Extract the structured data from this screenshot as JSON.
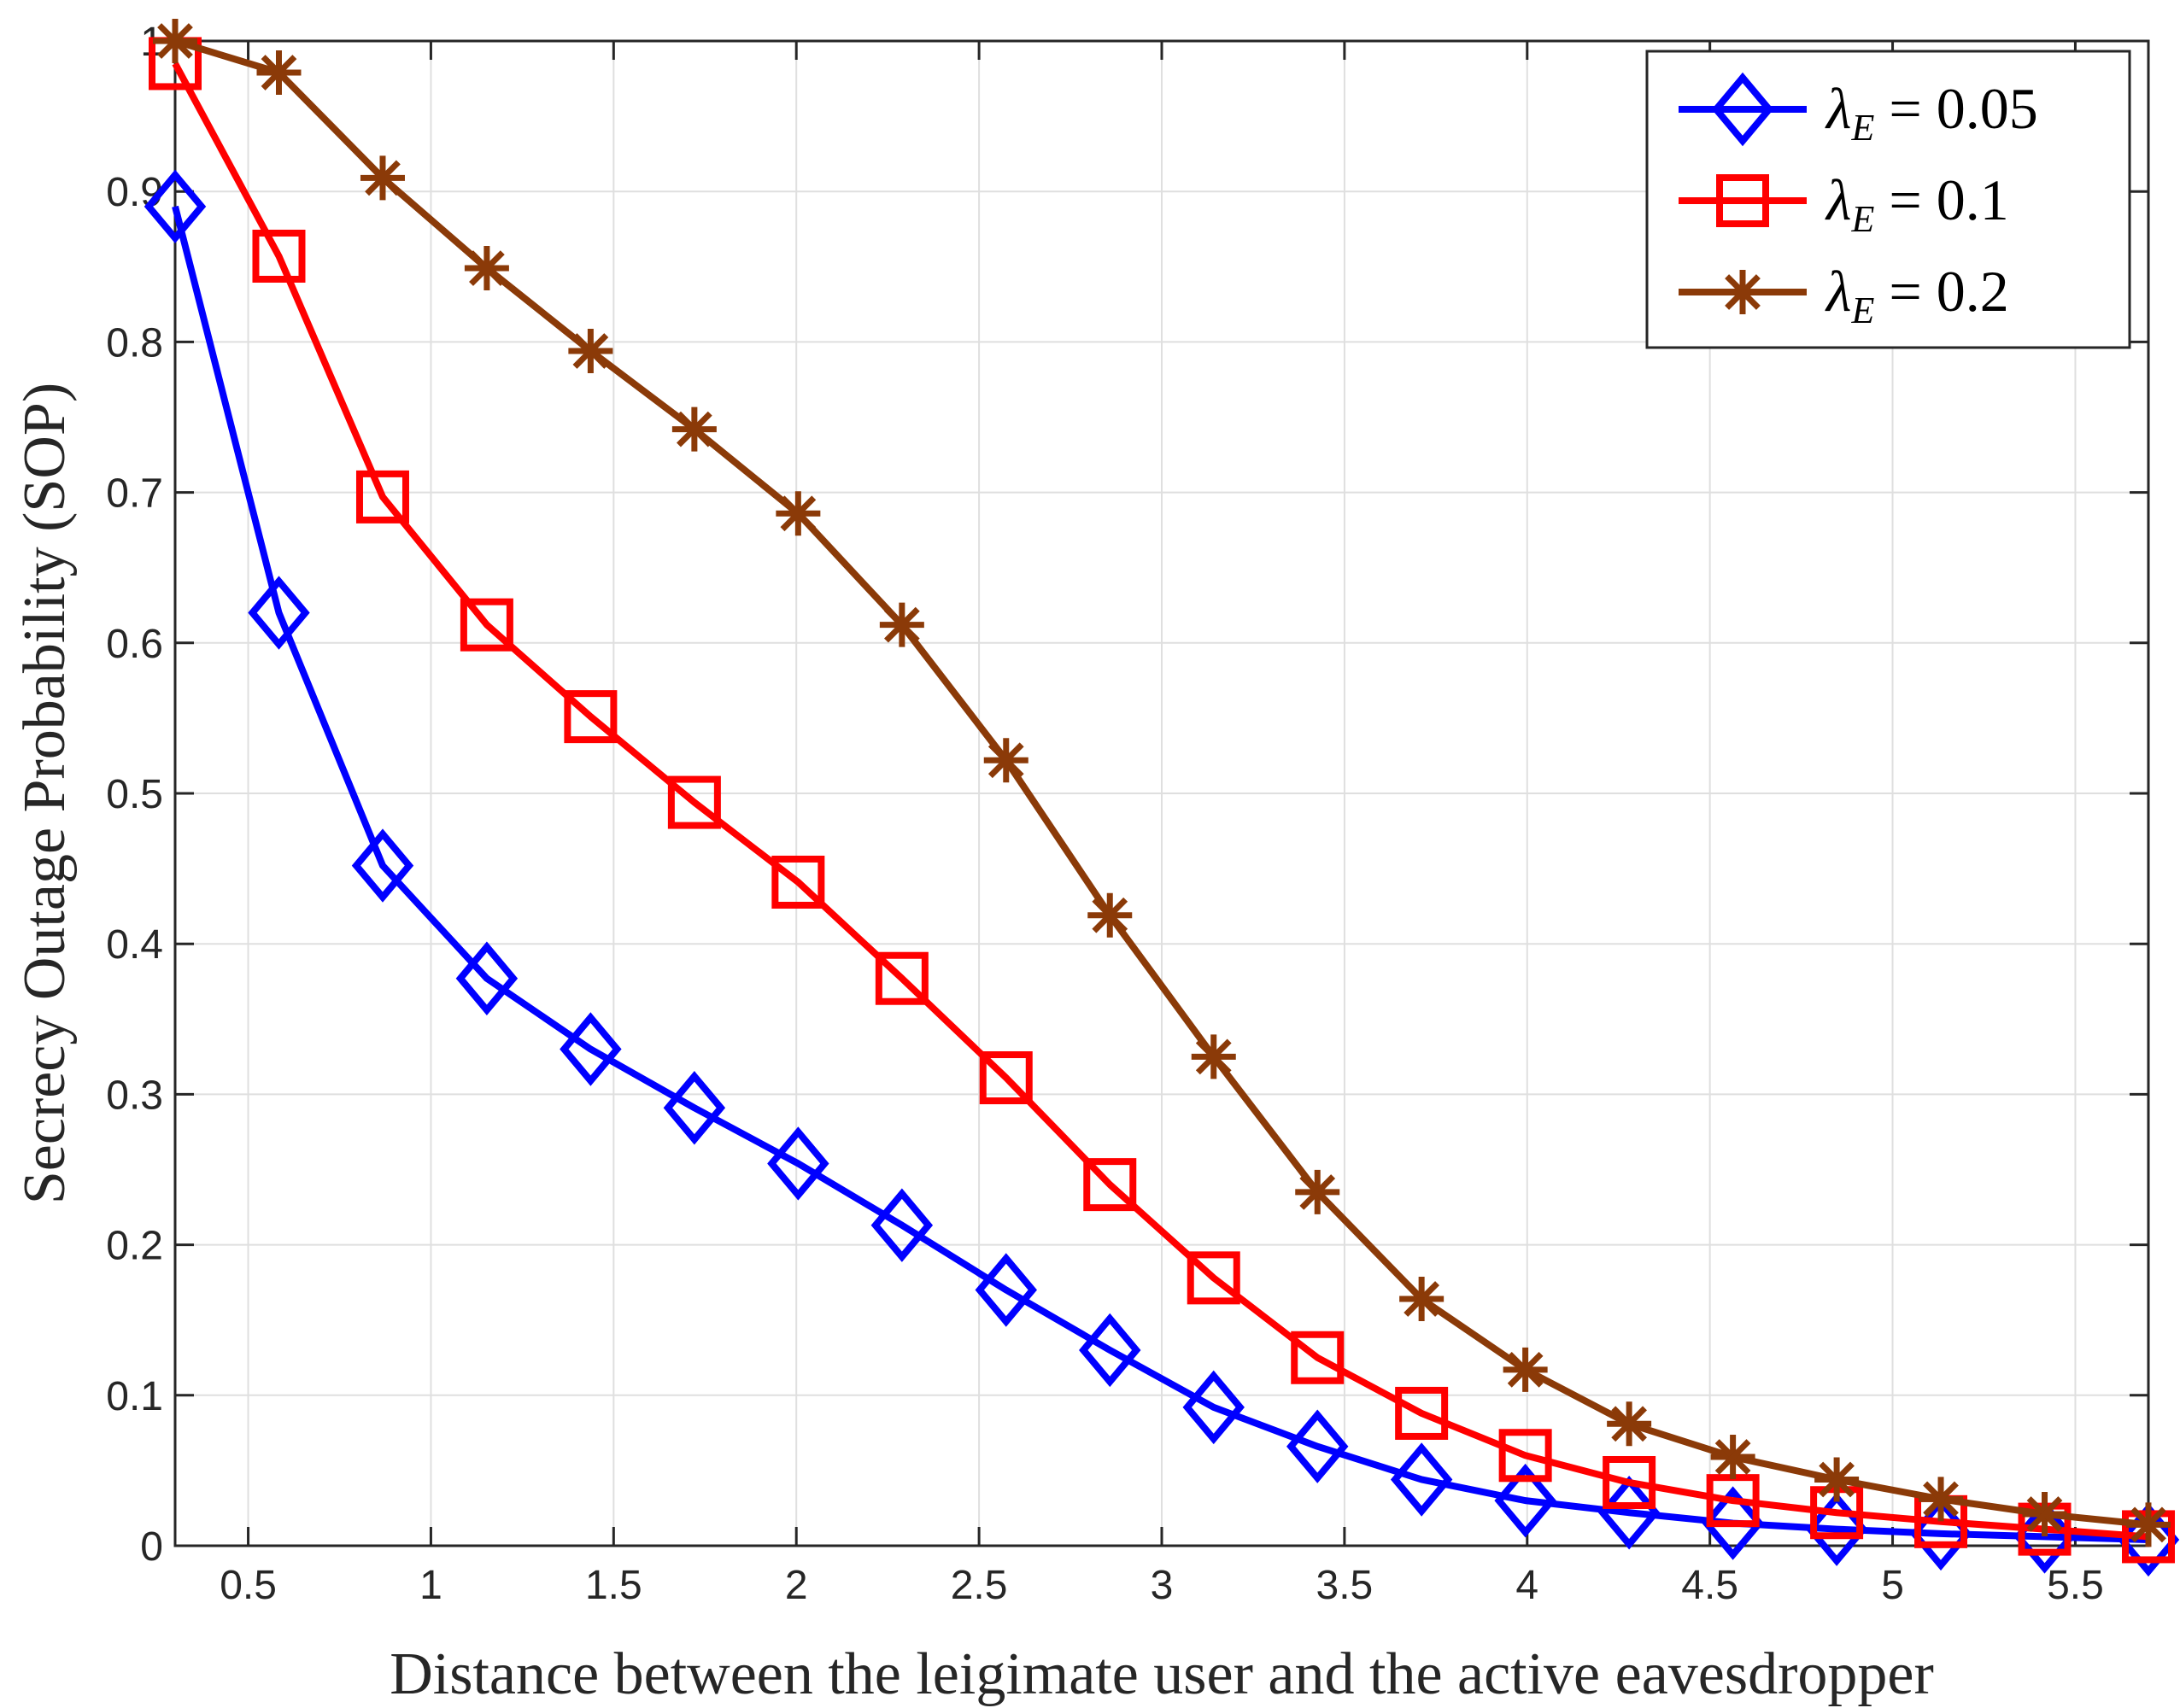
{
  "chart_data": {
    "type": "line",
    "title": "",
    "xlabel": "Distance between the leigimate user and the active eavesdropper",
    "ylabel": "Secrecy Outage Probability (SOP)",
    "xlim": [
      0.3,
      5.7
    ],
    "ylim": [
      0,
      1
    ],
    "xticks": [
      "0.5",
      "1",
      "1.5",
      "2",
      "2.5",
      "3",
      "3.5",
      "4",
      "4.5",
      "5",
      "5.5"
    ],
    "yticks": [
      "0",
      "0.1",
      "0.2",
      "0.3",
      "0.4",
      "0.5",
      "0.6",
      "0.7",
      "0.8",
      "0.9",
      "1"
    ],
    "grid": true,
    "legend_position": "top-right",
    "x": [
      0.3,
      0.584,
      0.868,
      1.153,
      1.437,
      1.721,
      2.005,
      2.289,
      2.574,
      2.858,
      3.142,
      3.426,
      3.711,
      3.995,
      4.279,
      4.563,
      4.847,
      5.132,
      5.416,
      5.7
    ],
    "series": [
      {
        "name": "λ_E = 0.05",
        "legend_main": "λ",
        "legend_sub": "E",
        "legend_rest": " = 0.05",
        "color": "#0000FF",
        "marker": "diamond",
        "values": [
          0.89,
          0.62,
          0.452,
          0.377,
          0.33,
          0.291,
          0.254,
          0.213,
          0.17,
          0.13,
          0.092,
          0.066,
          0.044,
          0.03,
          0.022,
          0.015,
          0.011,
          0.008,
          0.006,
          0.004
        ]
      },
      {
        "name": "λ_E = 0.1",
        "legend_main": "λ",
        "legend_sub": "E",
        "legend_rest": " = 0.1",
        "color": "#FF0000",
        "marker": "square",
        "values": [
          0.985,
          0.857,
          0.697,
          0.612,
          0.551,
          0.494,
          0.441,
          0.377,
          0.311,
          0.24,
          0.178,
          0.125,
          0.088,
          0.06,
          0.042,
          0.03,
          0.022,
          0.016,
          0.011,
          0.006
        ]
      },
      {
        "name": "λ_E = 0.2",
        "legend_main": "λ",
        "legend_sub": "E",
        "legend_rest": " = 0.2",
        "color": "#8B3A08",
        "marker": "asterisk",
        "values": [
          1.0,
          0.979,
          0.909,
          0.849,
          0.794,
          0.742,
          0.686,
          0.612,
          0.522,
          0.419,
          0.325,
          0.235,
          0.164,
          0.117,
          0.081,
          0.059,
          0.044,
          0.031,
          0.021,
          0.014
        ]
      }
    ]
  }
}
